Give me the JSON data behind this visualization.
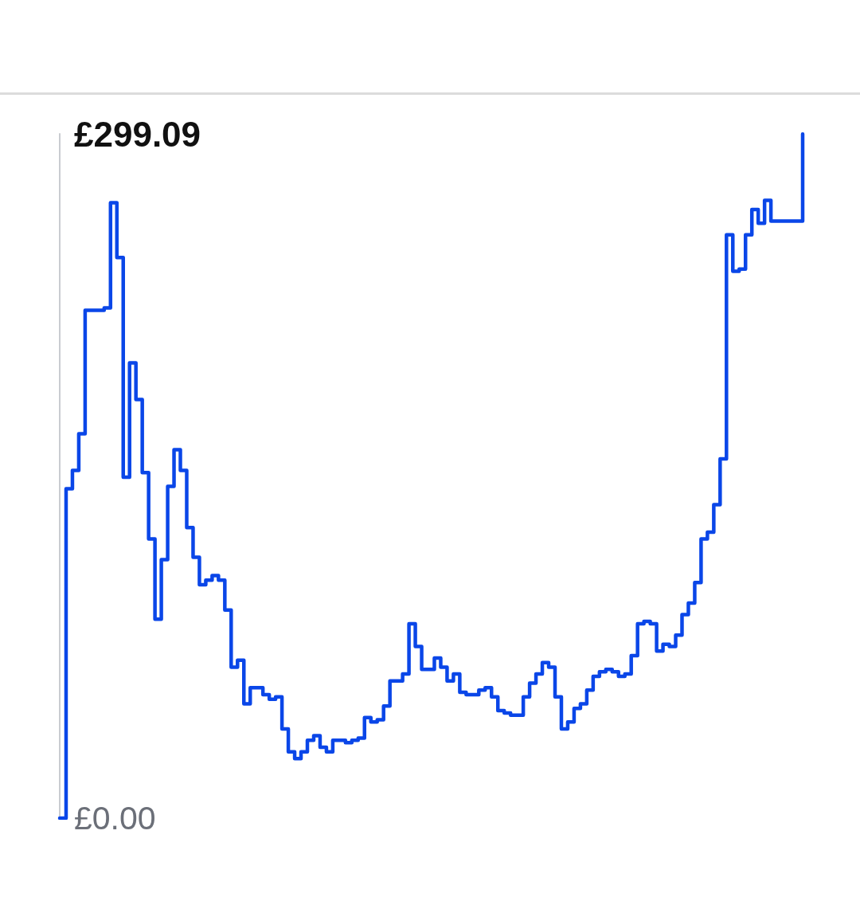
{
  "chart_data": {
    "type": "step",
    "categories": [
      null,
      null,
      null,
      null,
      null,
      null,
      null,
      null,
      null,
      null,
      null,
      null,
      null,
      null,
      null,
      null,
      null,
      null,
      null,
      null,
      null,
      null,
      null,
      null,
      null,
      null,
      null,
      null,
      null,
      null,
      null,
      null,
      null,
      null,
      null,
      null,
      null,
      null,
      null,
      null,
      null,
      null,
      null,
      null,
      null,
      null,
      null,
      null,
      null,
      null,
      null,
      null,
      null,
      null,
      null,
      null,
      null,
      null,
      null,
      null,
      null,
      null,
      null,
      null,
      null,
      null,
      null,
      null,
      null,
      null,
      null,
      null,
      null,
      null,
      null,
      null,
      null,
      null,
      null,
      null,
      null,
      null,
      null,
      null,
      null,
      null,
      null,
      null,
      null,
      null,
      null,
      null,
      null,
      null,
      null,
      null,
      null,
      null,
      null,
      null,
      null,
      null,
      null,
      null,
      null,
      null,
      null,
      null,
      null,
      null,
      null,
      null,
      null,
      null,
      null,
      null,
      null,
      null
    ],
    "values": [
      0,
      144,
      152,
      168,
      222,
      222,
      222,
      223,
      269,
      245,
      149,
      199,
      183,
      151,
      122,
      87,
      113,
      145,
      161,
      152,
      127,
      114,
      102,
      104,
      106,
      104,
      91,
      66,
      69,
      50,
      57,
      57,
      54,
      52,
      53,
      39,
      29,
      26,
      29,
      34,
      36,
      31,
      29,
      34,
      34,
      33,
      34,
      35,
      44,
      42,
      43,
      49,
      60,
      60,
      63,
      85,
      75,
      65,
      65,
      70,
      66,
      60,
      63,
      55,
      54,
      54,
      56,
      57,
      53,
      47,
      46,
      45,
      45,
      53,
      59,
      63,
      68,
      66,
      53,
      39,
      42,
      48,
      50,
      56,
      62,
      64,
      65,
      64,
      62,
      63,
      71,
      85,
      86,
      85,
      73,
      76,
      75,
      80,
      89,
      94,
      103,
      122,
      125,
      137,
      157,
      255,
      239,
      240,
      255,
      266,
      260,
      270,
      261,
      261,
      261,
      261,
      261,
      299
    ],
    "color": "#0a46e8",
    "ylim": [
      0,
      299.09
    ],
    "yticks": [
      {
        "value": 0,
        "label": "£0.00"
      },
      {
        "value": 299.09,
        "label": "£299.09"
      }
    ],
    "tick_labels": "y",
    "marker": "none"
  }
}
